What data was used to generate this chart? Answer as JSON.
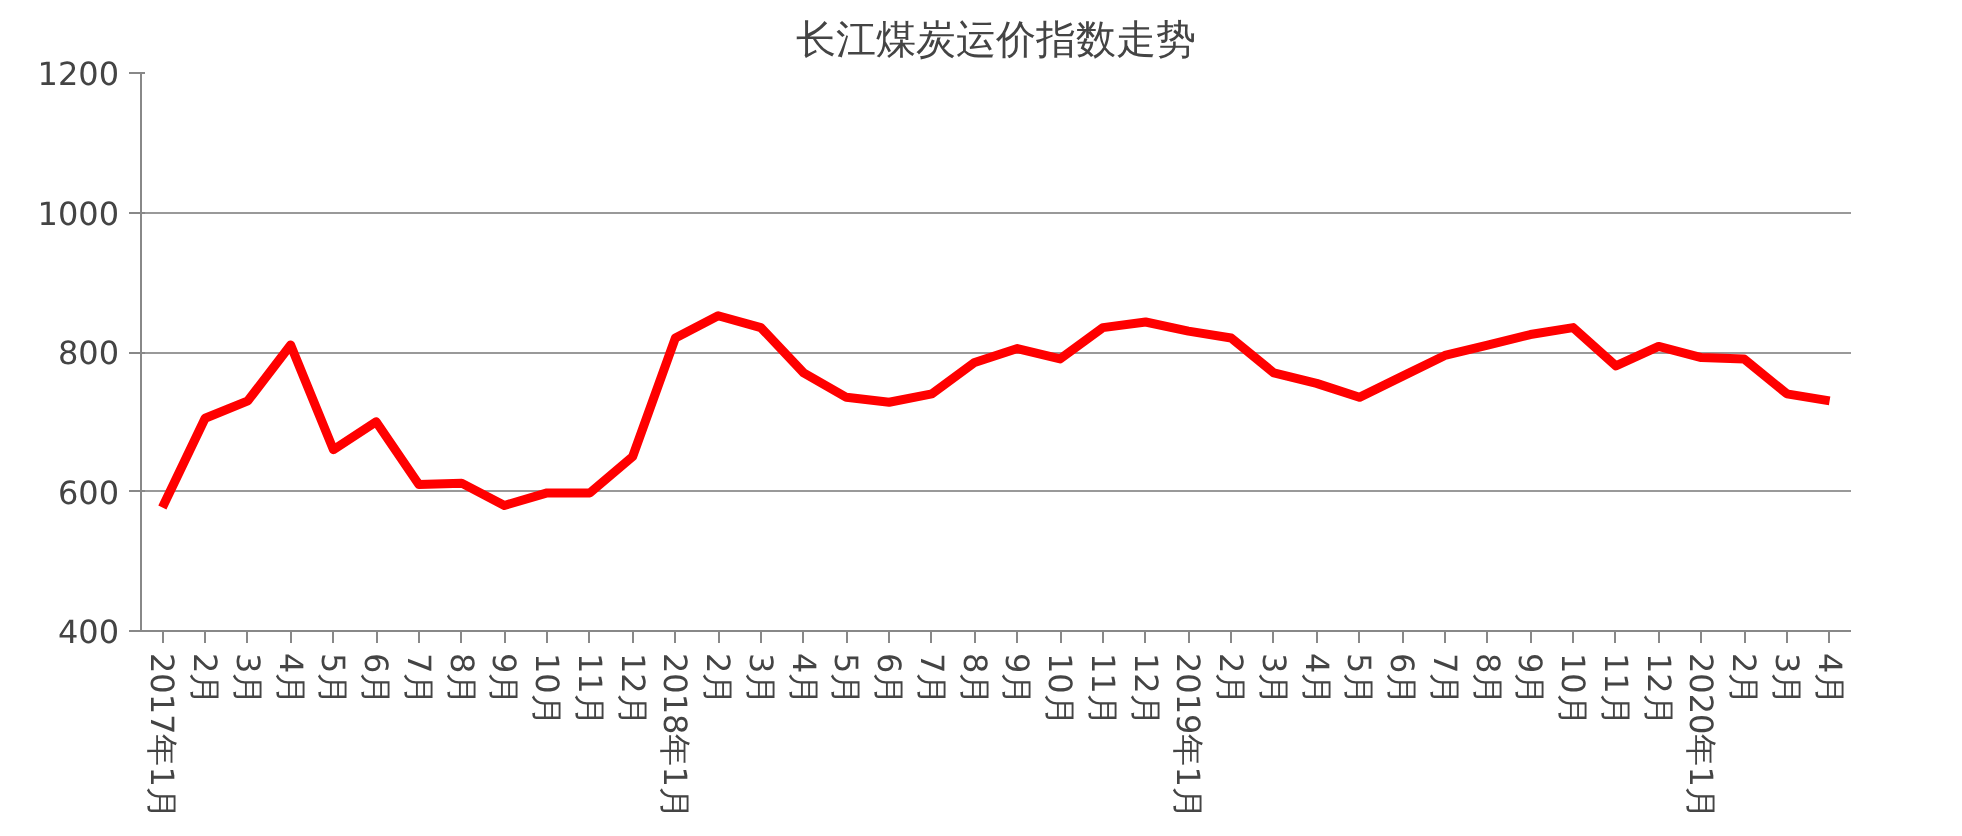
{
  "chart_data": {
    "type": "line",
    "title": "长江煤炭运价指数走势",
    "categories": [
      "2017年1月",
      "2月",
      "3月",
      "4月",
      "5月",
      "6月",
      "7月",
      "8月",
      "9月",
      "10月",
      "11月",
      "12月",
      "2018年1月",
      "2月",
      "3月",
      "4月",
      "5月",
      "6月",
      "7月",
      "8月",
      "9月",
      "10月",
      "11月",
      "12月",
      "2019年1月",
      "2月",
      "3月",
      "4月",
      "5月",
      "6月",
      "7月",
      "8月",
      "9月",
      "10月",
      "11月",
      "12月",
      "2020年1月",
      "2月",
      "3月",
      "4月"
    ],
    "series": [
      {
        "color": "#ff0000",
        "values": [
          577,
          705,
          730,
          810,
          660,
          700,
          610,
          612,
          580,
          598,
          598,
          650,
          820,
          852,
          835,
          770,
          735,
          728,
          740,
          785,
          805,
          790,
          835,
          843,
          830,
          820,
          770,
          755,
          735,
          765,
          795,
          810,
          825,
          835,
          780,
          808,
          792,
          790,
          740,
          730
        ]
      }
    ],
    "ylim": [
      400,
      1200
    ],
    "yticks": [
      400,
      600,
      800,
      1000,
      1200
    ],
    "grid": "y",
    "line_style": "solid",
    "marker": "none"
  }
}
